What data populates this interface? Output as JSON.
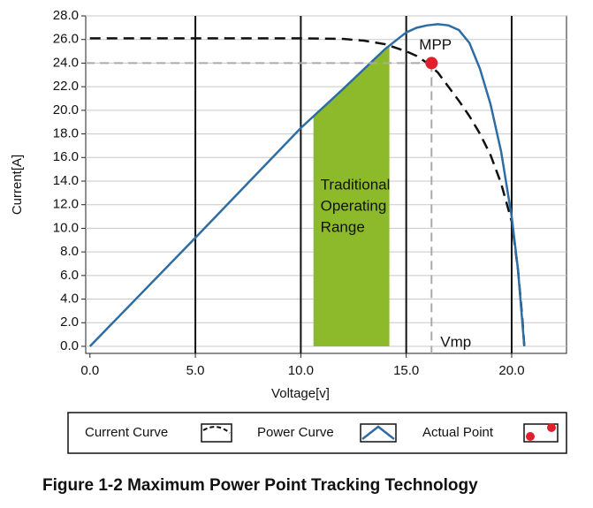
{
  "chart_data": {
    "type": "line",
    "x_label": "Voltage[v]",
    "y_label": "Current[A]",
    "xlim": [
      -0.2,
      22.6
    ],
    "ylim": [
      -0.6,
      28
    ],
    "xticks": [
      {
        "value": 0,
        "label": "0.0"
      },
      {
        "value": 5,
        "label": "5.0"
      },
      {
        "value": 10,
        "label": "10.0"
      },
      {
        "value": 15,
        "label": "15.0"
      },
      {
        "value": 20,
        "label": "20.0"
      }
    ],
    "yticks": [
      {
        "value": 0,
        "label": "0.0"
      },
      {
        "value": 2,
        "label": "2.0"
      },
      {
        "value": 4,
        "label": "4.0"
      },
      {
        "value": 6,
        "label": "6.0"
      },
      {
        "value": 8,
        "label": "8.0"
      },
      {
        "value": 10,
        "label": "10.0"
      },
      {
        "value": 12,
        "label": "12.0"
      },
      {
        "value": 14,
        "label": "14.0"
      },
      {
        "value": 16,
        "label": "16.0"
      },
      {
        "value": 18,
        "label": "18.0"
      },
      {
        "value": 20,
        "label": "20.0"
      },
      {
        "value": 22,
        "label": "22.0"
      },
      {
        "value": 24,
        "label": "24.0"
      },
      {
        "value": 26,
        "label": "26.0"
      },
      {
        "value": 28,
        "label": "28.0"
      }
    ],
    "grid": true,
    "series": [
      {
        "name": "Current Curve",
        "color": "#111111",
        "dashed": true,
        "x": [
          0,
          5,
          10,
          12,
          13,
          14,
          15,
          15.5,
          16,
          16.5,
          17,
          17.5,
          18,
          18.5,
          19,
          19.5,
          20,
          20.3,
          20.5,
          20.6
        ],
        "values": [
          26.1,
          26.1,
          26.1,
          26.05,
          25.9,
          25.6,
          25.0,
          24.6,
          24.0,
          23.2,
          22.0,
          20.8,
          19.5,
          18.0,
          16.2,
          13.8,
          10.6,
          6.5,
          2.5,
          0
        ]
      },
      {
        "name": "Power Curve",
        "color": "#2e6da4",
        "dashed": false,
        "x": [
          0,
          5,
          10,
          12,
          14,
          15,
          15.5,
          16,
          16.5,
          17,
          17.5,
          18,
          18.5,
          19,
          19.5,
          20,
          20.3,
          20.6
        ],
        "values": [
          0,
          9.2,
          18.5,
          21.8,
          25.2,
          26.6,
          27.0,
          27.2,
          27.3,
          27.2,
          26.8,
          25.7,
          23.5,
          20.5,
          16.5,
          11,
          6.5,
          0
        ]
      }
    ],
    "point": {
      "name": "Actual Point",
      "color": "#e0202a",
      "x": 16.2,
      "y": 24.0,
      "label": "MPP",
      "x_label": "Vmp"
    },
    "shaded_range": {
      "x": [
        10.6,
        14.2
      ],
      "color": "#8cba2a",
      "label_lines": [
        "Traditional",
        "Operating",
        "Range"
      ]
    },
    "caption": "Figure 1-2 Maximum Power Point Tracking Technology"
  }
}
